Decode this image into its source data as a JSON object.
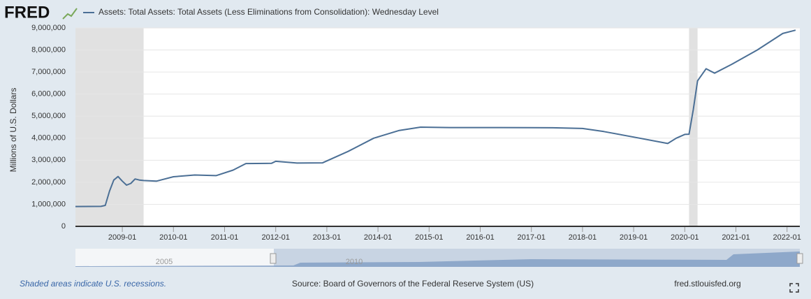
{
  "brand": "FRED",
  "chart_data": {
    "type": "line",
    "title": "Assets: Total Assets: Total Assets (Less Eliminations from Consolidation): Wednesday Level",
    "y_label": "Millions of U.S. Dollars",
    "xlim": [
      "2008-02",
      "2022-04"
    ],
    "xticks": [
      "2009-01",
      "2010-01",
      "2011-01",
      "2012-01",
      "2013-01",
      "2014-01",
      "2015-01",
      "2016-01",
      "2017-01",
      "2018-01",
      "2019-01",
      "2020-01",
      "2021-01",
      "2022-01"
    ],
    "ylim": [
      0,
      9000000
    ],
    "yticks": [
      0,
      {
        "value": 1000000,
        "label": "1,000,000"
      },
      {
        "value": 2000000,
        "label": "2,000,000"
      },
      {
        "value": 3000000,
        "label": "3,000,000"
      },
      {
        "value": 4000000,
        "label": "4,000,000"
      },
      {
        "value": 5000000,
        "label": "5,000,000"
      },
      {
        "value": 6000000,
        "label": "6,000,000"
      },
      {
        "value": 7000000,
        "label": "7,000,000"
      },
      {
        "value": 8000000,
        "label": "8,000,000"
      },
      {
        "value": 9000000,
        "label": "9,000,000"
      }
    ],
    "grid": true,
    "recessions": [
      [
        "2008-02",
        "2009-06"
      ],
      [
        "2020-02",
        "2020-04"
      ]
    ],
    "recession_color": "#e1e1e1",
    "series": [
      {
        "name": "Assets: Total Assets: Total Assets (Less Eliminations from Consolidation): Wednesday Level",
        "color": "#4b6f95",
        "x": [
          "2008-02",
          "2008-08",
          "2008-09",
          "2008-10",
          "2008-11",
          "2008-12",
          "2009-01",
          "2009-02",
          "2009-03",
          "2009-04",
          "2009-05",
          "2009-06",
          "2009-09",
          "2010-01",
          "2010-06",
          "2010-11",
          "2011-03",
          "2011-06",
          "2011-12",
          "2012-01",
          "2012-06",
          "2012-12",
          "2013-06",
          "2013-12",
          "2014-06",
          "2014-11",
          "2015-06",
          "2016-06",
          "2017-06",
          "2018-01",
          "2018-06",
          "2019-01",
          "2019-09",
          "2019-11",
          "2020-01",
          "2020-02",
          "2020-03",
          "2020-04",
          "2020-06",
          "2020-08",
          "2020-12",
          "2021-06",
          "2021-12",
          "2022-03"
        ],
        "values": [
          900000,
          905000,
          950000,
          1600000,
          2100000,
          2260000,
          2050000,
          1870000,
          1950000,
          2150000,
          2100000,
          2080000,
          2050000,
          2250000,
          2330000,
          2300000,
          2550000,
          2850000,
          2860000,
          2950000,
          2870000,
          2880000,
          3400000,
          4000000,
          4350000,
          4500000,
          4480000,
          4480000,
          4470000,
          4440000,
          4300000,
          4050000,
          3760000,
          4000000,
          4170000,
          4180000,
          5300000,
          6600000,
          7150000,
          6950000,
          7350000,
          8000000,
          8750000,
          8900000
        ]
      }
    ]
  },
  "navigator_labels": [
    "2005",
    "2010"
  ],
  "footer": {
    "note": "Shaded areas indicate U.S. recessions.",
    "source": "Source: Board of Governors of the Federal Reserve System (US)",
    "site": "fred.stlouisfed.org"
  }
}
